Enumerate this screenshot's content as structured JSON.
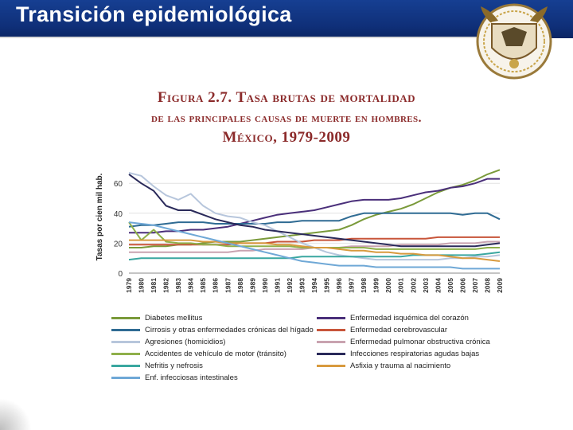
{
  "slide": {
    "title": "Transición epidemiológica",
    "header_color": "#163f92",
    "seal_icon": "unam-seal-icon"
  },
  "figure": {
    "title_line1": "Figura 2.7. Tasa brutas de mortalidad",
    "title_line2": "de las principales causas de muerte en hombres.",
    "title_line3": "México, 1979-2009",
    "title_color": "#8b2a2a"
  },
  "chart_data": {
    "type": "line",
    "title": "Figura 2.7. Tasa brutas de mortalidad de las principales causas de muerte en hombres. México, 1979-2009",
    "xlabel": "",
    "ylabel": "Tasas por cien mil hab.",
    "ylim": [
      0,
      75
    ],
    "yticks": [
      0,
      20,
      40,
      60
    ],
    "grid": true,
    "legend_position": "bottom",
    "categories": [
      "1979",
      "1980",
      "1981",
      "1982",
      "1983",
      "1984",
      "1985",
      "1986",
      "1987",
      "1988",
      "1989",
      "1990",
      "1991",
      "1992",
      "1993",
      "1994",
      "1995",
      "1996",
      "1997",
      "1998",
      "1999",
      "2000",
      "2001",
      "2002",
      "2003",
      "2004",
      "2005",
      "2006",
      "2007",
      "2008",
      "2009"
    ],
    "series": [
      {
        "name": "Diabetes mellitus",
        "color": "#7a9a3a",
        "values": [
          17,
          17,
          18,
          18,
          19,
          19,
          20,
          21,
          21,
          21,
          22,
          23,
          24,
          25,
          26,
          27,
          28,
          29,
          32,
          36,
          39,
          41,
          43,
          46,
          50,
          54,
          57,
          59,
          62,
          66,
          69
        ]
      },
      {
        "name": "Enfermedad isquémica del corazón",
        "color": "#4a2f7a",
        "values": [
          27,
          27,
          27,
          28,
          28,
          29,
          29,
          30,
          31,
          33,
          35,
          37,
          39,
          40,
          41,
          42,
          44,
          46,
          48,
          49,
          49,
          49,
          50,
          52,
          54,
          55,
          57,
          58,
          60,
          63,
          63
        ]
      },
      {
        "name": "Cirrosis y otras enfermedades crónicas del hígado",
        "color": "#2f6b93",
        "values": [
          31,
          32,
          32,
          33,
          34,
          34,
          34,
          33,
          33,
          33,
          33,
          33,
          34,
          34,
          35,
          35,
          35,
          35,
          38,
          40,
          40,
          40,
          40,
          40,
          40,
          40,
          40,
          39,
          40,
          40,
          36
        ]
      },
      {
        "name": "Enfermedad cerebrovascular",
        "color": "#c8553a",
        "values": [
          19,
          19,
          19,
          19,
          19,
          19,
          19,
          19,
          19,
          20,
          20,
          20,
          21,
          21,
          21,
          22,
          22,
          22,
          23,
          23,
          23,
          23,
          23,
          23,
          23,
          24,
          24,
          24,
          24,
          24,
          24
        ]
      },
      {
        "name": "Agresiones (homicidios)",
        "color": "#b7c6dc",
        "values": [
          67,
          65,
          58,
          52,
          49,
          53,
          45,
          40,
          38,
          37,
          34,
          32,
          28,
          24,
          20,
          17,
          14,
          12,
          11,
          10,
          9,
          9,
          9,
          9,
          9,
          9,
          10,
          10,
          11,
          11,
          12
        ]
      },
      {
        "name": "Enfermedad pulmonar obstructiva crónica",
        "color": "#c9a3b0",
        "values": [
          14,
          14,
          14,
          14,
          14,
          14,
          14,
          14,
          14,
          15,
          15,
          16,
          16,
          16,
          16,
          17,
          17,
          17,
          18,
          18,
          18,
          18,
          19,
          19,
          19,
          19,
          20,
          20,
          20,
          21,
          21
        ]
      },
      {
        "name": "Accidentes de vehículo de motor (tránsito)",
        "color": "#8fb04a",
        "values": [
          34,
          22,
          29,
          21,
          20,
          20,
          19,
          19,
          18,
          18,
          18,
          18,
          18,
          18,
          17,
          17,
          17,
          17,
          17,
          17,
          16,
          16,
          16,
          16,
          16,
          16,
          16,
          16,
          16,
          17,
          17
        ]
      },
      {
        "name": "Infecciones respiratorias agudas bajas",
        "color": "#2a2a5a",
        "values": [
          66,
          60,
          55,
          45,
          42,
          42,
          39,
          36,
          34,
          32,
          31,
          29,
          28,
          27,
          26,
          25,
          24,
          23,
          22,
          21,
          20,
          19,
          18,
          18,
          18,
          18,
          18,
          18,
          18,
          19,
          20
        ]
      },
      {
        "name": "Nefritis y nefrosis",
        "color": "#3aa7a0",
        "values": [
          9,
          10,
          10,
          10,
          10,
          10,
          10,
          10,
          10,
          10,
          10,
          10,
          10,
          10,
          11,
          11,
          11,
          11,
          11,
          11,
          11,
          11,
          11,
          12,
          12,
          12,
          12,
          12,
          12,
          13,
          14
        ]
      },
      {
        "name": "Asfixia y trauma al nacimiento",
        "color": "#d89a3e",
        "values": [
          22,
          22,
          22,
          22,
          22,
          22,
          21,
          21,
          20,
          20,
          20,
          20,
          19,
          19,
          18,
          17,
          17,
          16,
          15,
          15,
          14,
          14,
          13,
          13,
          12,
          12,
          11,
          10,
          10,
          9,
          8
        ]
      },
      {
        "name": "Enf. infecciosas intestinales",
        "color": "#6fa8d6",
        "values": [
          34,
          33,
          32,
          30,
          28,
          26,
          24,
          22,
          20,
          18,
          16,
          14,
          12,
          10,
          8,
          7,
          6,
          5,
          5,
          5,
          4,
          4,
          4,
          4,
          4,
          4,
          4,
          3,
          3,
          3,
          3
        ]
      }
    ]
  }
}
